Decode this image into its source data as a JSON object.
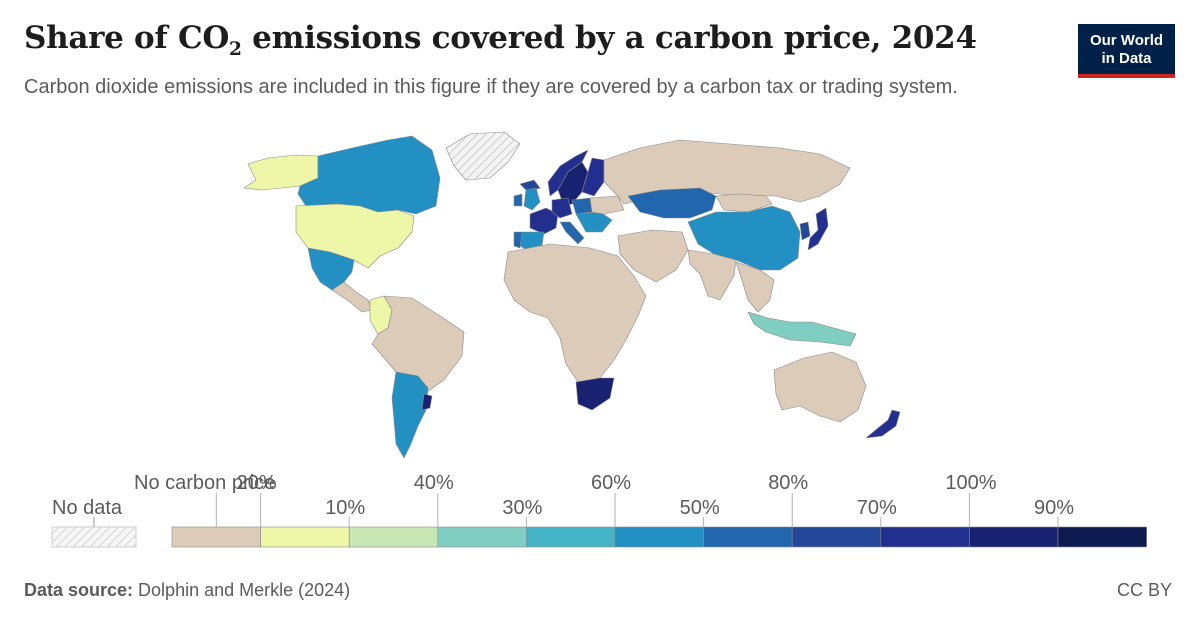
{
  "header": {
    "title_main": "Share of CO",
    "title_sub": "2",
    "title_rest": " emissions covered by a carbon price, 2024",
    "subtitle": "Carbon dioxide emissions are included in this figure if they are covered by a carbon tax or trading system.",
    "logo_line1": "Our World",
    "logo_line2": "in Data"
  },
  "legend": {
    "no_data_label": "No data",
    "no_price_label": "No carbon price",
    "upper_ticks": [
      "20%",
      "40%",
      "60%",
      "80%",
      "100%"
    ],
    "lower_ticks": [
      "10%",
      "30%",
      "50%",
      "70%",
      "90%"
    ],
    "bins": [
      {
        "range": "No carbon price",
        "color": "#dccbb9"
      },
      {
        "range": "0-10%",
        "color": "#eef6a8"
      },
      {
        "range": "10-20%",
        "color": "#c9e7b4"
      },
      {
        "range": "20-30%",
        "color": "#80cdc1"
      },
      {
        "range": "30-40%",
        "color": "#45b4c6"
      },
      {
        "range": "40-50%",
        "color": "#2290c3"
      },
      {
        "range": "50-60%",
        "color": "#2266ad"
      },
      {
        "range": "60-70%",
        "color": "#24479a"
      },
      {
        "range": "70-80%",
        "color": "#232f8f"
      },
      {
        "range": "80-90%",
        "color": "#182270"
      },
      {
        "range": "90-100%",
        "color": "#0c1a4f"
      }
    ],
    "no_data_color": "#f0f0f0"
  },
  "map": {
    "colors": {
      "ocean": "#ffffff",
      "border": "#8a8a8a"
    },
    "regions": [
      {
        "name": "Alaska",
        "bin": 1
      },
      {
        "name": "Canada",
        "bin": 5
      },
      {
        "name": "Greenland",
        "bin": -1
      },
      {
        "name": "United States",
        "bin": 1
      },
      {
        "name": "Mexico",
        "bin": 5
      },
      {
        "name": "Central America",
        "bin": 0
      },
      {
        "name": "Colombia",
        "bin": 1
      },
      {
        "name": "South America",
        "bin": 0
      },
      {
        "name": "Argentina",
        "bin": 5
      },
      {
        "name": "Uruguay",
        "bin": 9
      },
      {
        "name": "Iceland",
        "bin": 7
      },
      {
        "name": "Norway",
        "bin": 8
      },
      {
        "name": "Sweden",
        "bin": 9
      },
      {
        "name": "Finland",
        "bin": 8
      },
      {
        "name": "United Kingdom",
        "bin": 5
      },
      {
        "name": "Ireland",
        "bin": 6
      },
      {
        "name": "France",
        "bin": 8
      },
      {
        "name": "Spain",
        "bin": 5
      },
      {
        "name": "Portugal",
        "bin": 6
      },
      {
        "name": "Germany",
        "bin": 8
      },
      {
        "name": "Poland",
        "bin": 6
      },
      {
        "name": "Italy",
        "bin": 6
      },
      {
        "name": "Balkans",
        "bin": 5
      },
      {
        "name": "Ukraine",
        "bin": 0
      },
      {
        "name": "Russia",
        "bin": 0
      },
      {
        "name": "Kazakhstan",
        "bin": 6
      },
      {
        "name": "China",
        "bin": 5
      },
      {
        "name": "Mongolia",
        "bin": 0
      },
      {
        "name": "Korea",
        "bin": 7
      },
      {
        "name": "Japan",
        "bin": 8
      },
      {
        "name": "Middle East",
        "bin": 0
      },
      {
        "name": "India",
        "bin": 0
      },
      {
        "name": "Southeast Asia",
        "bin": 0
      },
      {
        "name": "Indonesia",
        "bin": 3
      },
      {
        "name": "Africa",
        "bin": 0
      },
      {
        "name": "South Africa",
        "bin": 9
      },
      {
        "name": "Australia",
        "bin": 0
      },
      {
        "name": "New Zealand",
        "bin": 8
      }
    ]
  },
  "footer": {
    "source_label": "Data source:",
    "source_text": " Dolphin and Merkle (2024)",
    "license": "CC BY"
  }
}
